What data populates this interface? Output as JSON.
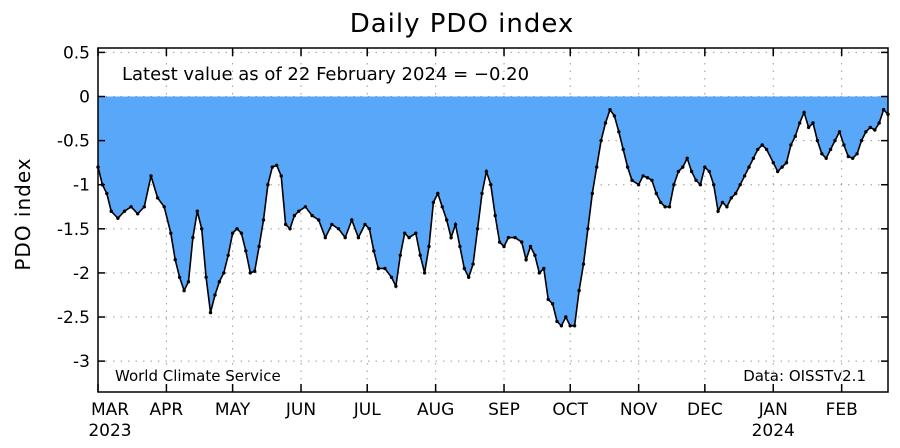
{
  "chart_data": {
    "type": "area",
    "title": "Daily PDO index",
    "ylabel": "PDO index",
    "ylim": [
      -3.35,
      0.55
    ],
    "yticks": [
      "0.5",
      "0",
      "-0.5",
      "-1",
      "-1.5",
      "-2",
      "-2.5",
      "-3"
    ],
    "ytick_values": [
      0.5,
      0,
      -0.5,
      -1,
      -1.5,
      -2,
      -2.5,
      -3
    ],
    "x_start": "2023-03-01",
    "x_end": "2024-02-22",
    "month_labels": [
      "MAR",
      "APR",
      "MAY",
      "JUN",
      "JUL",
      "AUG",
      "SEP",
      "OCT",
      "NOV",
      "DEC",
      "JAN",
      "FEB"
    ],
    "month_starts": [
      "2023-03-01",
      "2023-04-01",
      "2023-05-01",
      "2023-06-01",
      "2023-07-01",
      "2023-08-01",
      "2023-09-01",
      "2023-10-01",
      "2023-11-01",
      "2023-12-01",
      "2024-01-01",
      "2024-02-01"
    ],
    "year_labels": [
      {
        "text": "2023",
        "month_index": 0
      },
      {
        "text": "2024",
        "month_index": 10
      }
    ],
    "grid": "dotted",
    "fill_color": "#59a7f9",
    "line_color": "#000000",
    "annotation": "Latest value as of 22 February 2024 = −0.20",
    "source_left": "World Climate Service",
    "source_right": "Data: OISSTv2.1",
    "series": [
      {
        "points": [
          [
            "2023-03-01",
            -0.8
          ],
          [
            "2023-03-03",
            -1.0
          ],
          [
            "2023-03-05",
            -1.1
          ],
          [
            "2023-03-07",
            -1.3
          ],
          [
            "2023-03-10",
            -1.38
          ],
          [
            "2023-03-13",
            -1.3
          ],
          [
            "2023-03-16",
            -1.25
          ],
          [
            "2023-03-19",
            -1.33
          ],
          [
            "2023-03-22",
            -1.25
          ],
          [
            "2023-03-25",
            -0.9
          ],
          [
            "2023-03-28",
            -1.15
          ],
          [
            "2023-03-31",
            -1.25
          ],
          [
            "2023-04-03",
            -1.55
          ],
          [
            "2023-04-05",
            -1.85
          ],
          [
            "2023-04-07",
            -2.05
          ],
          [
            "2023-04-09",
            -2.2
          ],
          [
            "2023-04-11",
            -2.1
          ],
          [
            "2023-04-13",
            -1.6
          ],
          [
            "2023-04-15",
            -1.3
          ],
          [
            "2023-04-17",
            -1.5
          ],
          [
            "2023-04-19",
            -2.05
          ],
          [
            "2023-04-21",
            -2.45
          ],
          [
            "2023-04-23",
            -2.25
          ],
          [
            "2023-04-25",
            -2.1
          ],
          [
            "2023-04-27",
            -2.0
          ],
          [
            "2023-04-29",
            -1.8
          ],
          [
            "2023-05-01",
            -1.55
          ],
          [
            "2023-05-03",
            -1.5
          ],
          [
            "2023-05-05",
            -1.55
          ],
          [
            "2023-05-07",
            -1.75
          ],
          [
            "2023-05-09",
            -2.0
          ],
          [
            "2023-05-11",
            -1.98
          ],
          [
            "2023-05-13",
            -1.7
          ],
          [
            "2023-05-15",
            -1.4
          ],
          [
            "2023-05-17",
            -1.0
          ],
          [
            "2023-05-19",
            -0.8
          ],
          [
            "2023-05-21",
            -0.78
          ],
          [
            "2023-05-23",
            -0.9
          ],
          [
            "2023-05-25",
            -1.45
          ],
          [
            "2023-05-27",
            -1.5
          ],
          [
            "2023-05-29",
            -1.35
          ],
          [
            "2023-05-31",
            -1.3
          ],
          [
            "2023-06-03",
            -1.25
          ],
          [
            "2023-06-06",
            -1.35
          ],
          [
            "2023-06-09",
            -1.4
          ],
          [
            "2023-06-12",
            -1.6
          ],
          [
            "2023-06-15",
            -1.45
          ],
          [
            "2023-06-18",
            -1.5
          ],
          [
            "2023-06-21",
            -1.6
          ],
          [
            "2023-06-24",
            -1.4
          ],
          [
            "2023-06-27",
            -1.6
          ],
          [
            "2023-06-30",
            -1.45
          ],
          [
            "2023-07-02",
            -1.5
          ],
          [
            "2023-07-04",
            -1.75
          ],
          [
            "2023-07-06",
            -1.95
          ],
          [
            "2023-07-09",
            -1.95
          ],
          [
            "2023-07-12",
            -2.05
          ],
          [
            "2023-07-14",
            -2.15
          ],
          [
            "2023-07-16",
            -1.8
          ],
          [
            "2023-07-18",
            -1.55
          ],
          [
            "2023-07-20",
            -1.6
          ],
          [
            "2023-07-23",
            -1.55
          ],
          [
            "2023-07-25",
            -1.8
          ],
          [
            "2023-07-27",
            -2.0
          ],
          [
            "2023-07-29",
            -1.7
          ],
          [
            "2023-07-31",
            -1.2
          ],
          [
            "2023-08-02",
            -1.1
          ],
          [
            "2023-08-04",
            -1.25
          ],
          [
            "2023-08-06",
            -1.4
          ],
          [
            "2023-08-08",
            -1.6
          ],
          [
            "2023-08-10",
            -1.45
          ],
          [
            "2023-08-12",
            -1.7
          ],
          [
            "2023-08-14",
            -1.95
          ],
          [
            "2023-08-16",
            -2.05
          ],
          [
            "2023-08-18",
            -1.9
          ],
          [
            "2023-08-20",
            -1.5
          ],
          [
            "2023-08-22",
            -1.1
          ],
          [
            "2023-08-24",
            -0.85
          ],
          [
            "2023-08-26",
            -1.0
          ],
          [
            "2023-08-28",
            -1.35
          ],
          [
            "2023-08-30",
            -1.65
          ],
          [
            "2023-09-01",
            -1.7
          ],
          [
            "2023-09-03",
            -1.6
          ],
          [
            "2023-09-06",
            -1.6
          ],
          [
            "2023-09-09",
            -1.65
          ],
          [
            "2023-09-11",
            -1.85
          ],
          [
            "2023-09-13",
            -1.7
          ],
          [
            "2023-09-15",
            -1.8
          ],
          [
            "2023-09-17",
            -2.0
          ],
          [
            "2023-09-19",
            -1.95
          ],
          [
            "2023-09-21",
            -2.3
          ],
          [
            "2023-09-23",
            -2.35
          ],
          [
            "2023-09-25",
            -2.55
          ],
          [
            "2023-09-27",
            -2.6
          ],
          [
            "2023-09-29",
            -2.5
          ],
          [
            "2023-10-01",
            -2.6
          ],
          [
            "2023-10-03",
            -2.6
          ],
          [
            "2023-10-05",
            -2.2
          ],
          [
            "2023-10-07",
            -1.9
          ],
          [
            "2023-10-09",
            -1.5
          ],
          [
            "2023-10-11",
            -1.1
          ],
          [
            "2023-10-13",
            -0.8
          ],
          [
            "2023-10-15",
            -0.5
          ],
          [
            "2023-10-17",
            -0.3
          ],
          [
            "2023-10-19",
            -0.15
          ],
          [
            "2023-10-21",
            -0.22
          ],
          [
            "2023-10-23",
            -0.4
          ],
          [
            "2023-10-25",
            -0.6
          ],
          [
            "2023-10-27",
            -0.8
          ],
          [
            "2023-10-29",
            -0.95
          ],
          [
            "2023-11-01",
            -1.0
          ],
          [
            "2023-11-03",
            -0.9
          ],
          [
            "2023-11-05",
            -0.92
          ],
          [
            "2023-11-07",
            -0.95
          ],
          [
            "2023-11-09",
            -1.1
          ],
          [
            "2023-11-11",
            -1.2
          ],
          [
            "2023-11-13",
            -1.25
          ],
          [
            "2023-11-15",
            -1.25
          ],
          [
            "2023-11-17",
            -1.0
          ],
          [
            "2023-11-19",
            -0.85
          ],
          [
            "2023-11-21",
            -0.8
          ],
          [
            "2023-11-23",
            -0.7
          ],
          [
            "2023-11-25",
            -0.85
          ],
          [
            "2023-11-27",
            -0.95
          ],
          [
            "2023-11-29",
            -1.0
          ],
          [
            "2023-12-01",
            -0.8
          ],
          [
            "2023-12-03",
            -0.85
          ],
          [
            "2023-12-05",
            -1.0
          ],
          [
            "2023-12-07",
            -1.3
          ],
          [
            "2023-12-09",
            -1.2
          ],
          [
            "2023-12-11",
            -1.25
          ],
          [
            "2023-12-13",
            -1.15
          ],
          [
            "2023-12-15",
            -1.1
          ],
          [
            "2023-12-17",
            -1.0
          ],
          [
            "2023-12-19",
            -0.9
          ],
          [
            "2023-12-21",
            -0.8
          ],
          [
            "2023-12-23",
            -0.7
          ],
          [
            "2023-12-25",
            -0.6
          ],
          [
            "2023-12-27",
            -0.55
          ],
          [
            "2023-12-29",
            -0.6
          ],
          [
            "2024-01-01",
            -0.75
          ],
          [
            "2024-01-03",
            -0.85
          ],
          [
            "2024-01-05",
            -0.8
          ],
          [
            "2024-01-07",
            -0.75
          ],
          [
            "2024-01-09",
            -0.55
          ],
          [
            "2024-01-11",
            -0.45
          ],
          [
            "2024-01-13",
            -0.3
          ],
          [
            "2024-01-15",
            -0.18
          ],
          [
            "2024-01-17",
            -0.35
          ],
          [
            "2024-01-19",
            -0.3
          ],
          [
            "2024-01-21",
            -0.5
          ],
          [
            "2024-01-23",
            -0.65
          ],
          [
            "2024-01-25",
            -0.7
          ],
          [
            "2024-01-27",
            -0.6
          ],
          [
            "2024-01-29",
            -0.5
          ],
          [
            "2024-01-31",
            -0.4
          ],
          [
            "2024-02-02",
            -0.55
          ],
          [
            "2024-02-04",
            -0.68
          ],
          [
            "2024-02-06",
            -0.7
          ],
          [
            "2024-02-08",
            -0.65
          ],
          [
            "2024-02-10",
            -0.5
          ],
          [
            "2024-02-12",
            -0.4
          ],
          [
            "2024-02-14",
            -0.35
          ],
          [
            "2024-02-16",
            -0.38
          ],
          [
            "2024-02-18",
            -0.3
          ],
          [
            "2024-02-20",
            -0.15
          ],
          [
            "2024-02-22",
            -0.2
          ]
        ]
      }
    ]
  }
}
